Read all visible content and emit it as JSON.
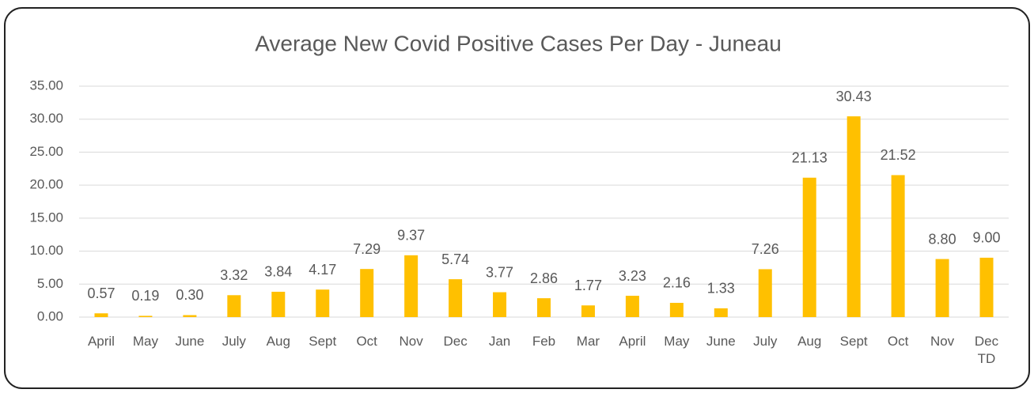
{
  "chart_data": {
    "type": "bar",
    "title": "Average New Covid Positive Cases Per Day - Juneau",
    "categories": [
      "April",
      "May",
      "June",
      "July",
      "Aug",
      "Sept",
      "Oct",
      "Nov",
      "Dec",
      "Jan",
      "Feb",
      "Mar",
      "April",
      "May",
      "June",
      "July",
      "Aug",
      "Sept",
      "Oct",
      "Nov",
      "Dec\nTD"
    ],
    "values": [
      0.57,
      0.19,
      0.3,
      3.32,
      3.84,
      4.17,
      7.29,
      9.37,
      5.74,
      3.77,
      2.86,
      1.77,
      3.23,
      2.16,
      1.33,
      7.26,
      21.13,
      30.43,
      21.52,
      8.8,
      9.0
    ],
    "value_labels": [
      "0.57",
      "0.19",
      "0.30",
      "3.32",
      "3.84",
      "4.17",
      "7.29",
      "9.37",
      "5.74",
      "3.77",
      "2.86",
      "1.77",
      "3.23",
      "2.16",
      "1.33",
      "7.26",
      "21.13",
      "30.43",
      "21.52",
      "8.80",
      "9.00"
    ],
    "color": "#ffc000",
    "ylim": [
      0,
      35
    ],
    "yticks": [
      {
        "value": 0,
        "label": "0.00"
      },
      {
        "value": 5,
        "label": "5.00"
      },
      {
        "value": 10,
        "label": "10.00"
      },
      {
        "value": 15,
        "label": "15.00"
      },
      {
        "value": 20,
        "label": "20.00"
      },
      {
        "value": 25,
        "label": "25.00"
      },
      {
        "value": 30,
        "label": "30.00"
      },
      {
        "value": 35,
        "label": "35.00"
      }
    ],
    "grid": true
  }
}
